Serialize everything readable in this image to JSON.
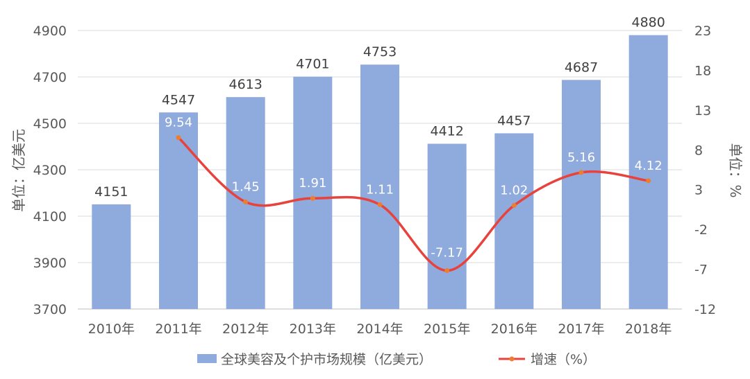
{
  "chart_data": {
    "type": "bar",
    "title": "",
    "categories": [
      "2010年",
      "2011年",
      "2012年",
      "2013年",
      "2014年",
      "2015年",
      "2016年",
      "2017年",
      "2018年"
    ],
    "series": [
      {
        "name": "全球美容及个护市场规模（亿美元）",
        "type": "bar",
        "axis": "left",
        "values": [
          4151,
          4547,
          4613,
          4701,
          4753,
          4412,
          4457,
          4687,
          4880
        ],
        "labels": [
          "4151",
          "4547",
          "4613",
          "4701",
          "4753",
          "4412",
          "4457",
          "4687",
          "4880"
        ],
        "color": "#8faadc"
      },
      {
        "name": "增速（%）",
        "type": "line",
        "axis": "right",
        "values": [
          null,
          9.54,
          1.45,
          1.91,
          1.11,
          -7.17,
          1.02,
          5.16,
          4.12
        ],
        "labels": [
          "",
          "9.54",
          "1.45",
          "1.91",
          "1.11",
          "-7.17",
          "1.02",
          "5.16",
          "4.12"
        ],
        "color": "#e8423c",
        "marker_color": "#ed7d31"
      }
    ],
    "ylabel": "单位：亿美元",
    "y2label": "单位：%",
    "ylim": [
      3700,
      4900
    ],
    "yticks": [
      "3700",
      "3900",
      "4100",
      "4300",
      "4500",
      "4700",
      "4900"
    ],
    "y2lim": [
      -12,
      23
    ],
    "y2ticks": [
      "-12",
      "-7",
      "-2",
      "3",
      "8",
      "13",
      "18",
      "23"
    ],
    "grid": true,
    "legend_position": "bottom"
  }
}
